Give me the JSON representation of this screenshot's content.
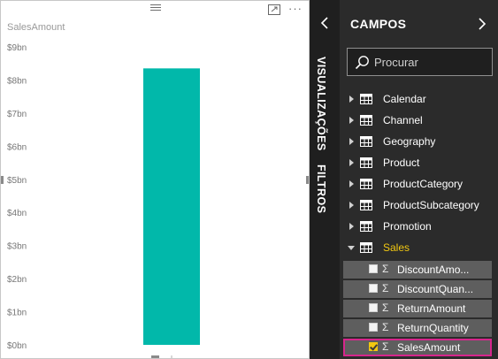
{
  "visual": {
    "title": "SalesAmount",
    "bar_color": "#01b8aa",
    "more_options": "···"
  },
  "chart_data": {
    "type": "bar",
    "title": "SalesAmount",
    "categories": [
      ""
    ],
    "series": [
      {
        "name": "SalesAmount",
        "values": [
          8.35
        ]
      }
    ],
    "unit": "bn",
    "ylim": [
      0,
      9
    ],
    "yticks": [
      "$0bn",
      "$1bn",
      "$2bn",
      "$3bn",
      "$4bn",
      "$5bn",
      "$6bn",
      "$7bn",
      "$8bn",
      "$9bn"
    ],
    "grid": false,
    "legend": "none"
  },
  "viz_tab": {
    "label": "VISUALIZAÇÕES"
  },
  "filters_tab": {
    "label": "FILTROS"
  },
  "fields_pane": {
    "title": "CAMPOS",
    "search_placeholder": "Procurar",
    "tables": [
      {
        "label": "Calendar",
        "expanded": false
      },
      {
        "label": "Channel",
        "expanded": false
      },
      {
        "label": "Geography",
        "expanded": false
      },
      {
        "label": "Product",
        "expanded": false
      },
      {
        "label": "ProductCategory",
        "expanded": false
      },
      {
        "label": "ProductSubcategory",
        "expanded": false
      },
      {
        "label": "Promotion",
        "expanded": false
      },
      {
        "label": "Sales",
        "expanded": true
      }
    ],
    "fields": [
      {
        "label": "DiscountAmo...",
        "checked": false
      },
      {
        "label": "DiscountQuan...",
        "checked": false
      },
      {
        "label": "ReturnAmount",
        "checked": false
      },
      {
        "label": "ReturnQuantity",
        "checked": false
      },
      {
        "label": "SalesAmount",
        "checked": true
      }
    ],
    "sigma": "Σ",
    "accent": "#f2c811",
    "highlight": "#d6268c"
  }
}
